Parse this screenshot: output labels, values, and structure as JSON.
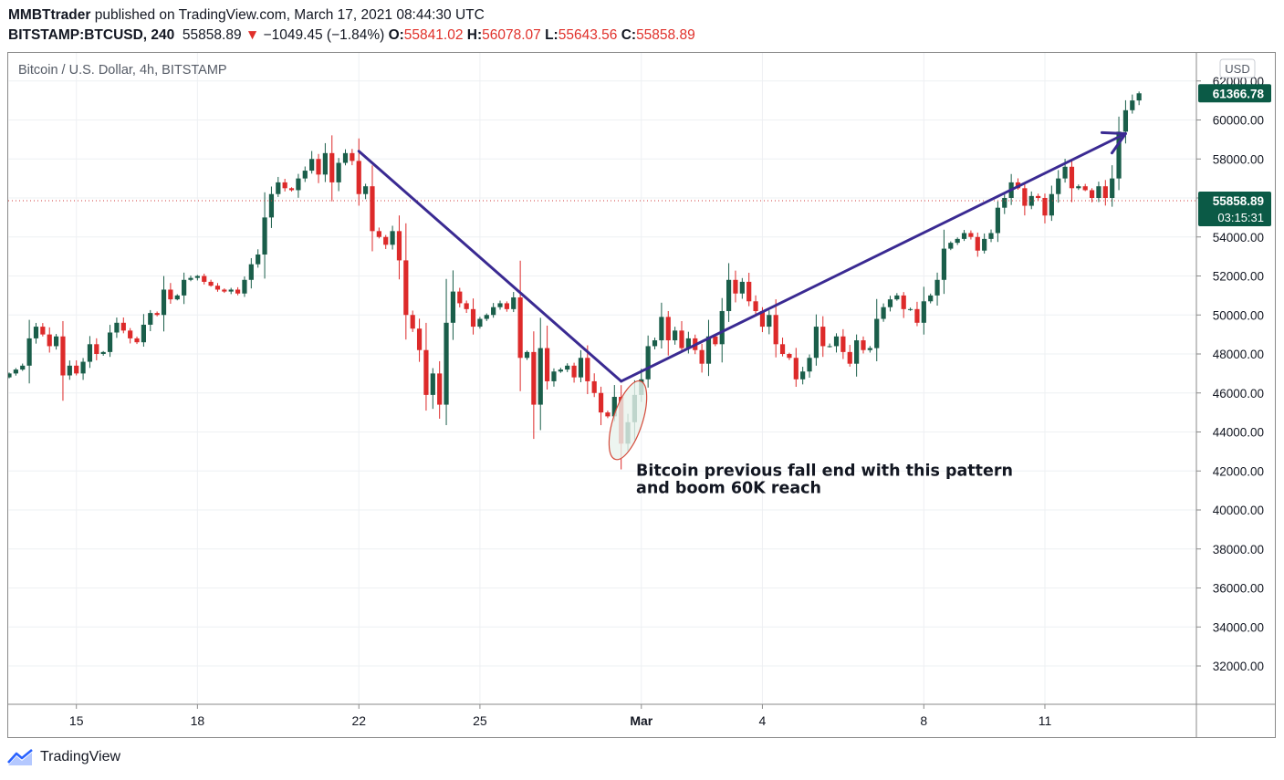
{
  "header": {
    "author": "MMBTtrader",
    "published_text": "published on TradingView.com, March 17, 2021 08:44:30 UTC",
    "symbol": "BITSTAMP:BTCUSD, 240",
    "last_price": "55858.89",
    "change": "−1049.45 (−1.84%)",
    "o_label": "O:",
    "o_value": "55841.02",
    "h_label": "H:",
    "h_value": "56078.07",
    "l_label": "L:",
    "l_value": "55643.56",
    "c_label": "C:",
    "c_value": "55858.89"
  },
  "footer": {
    "brand": "TradingView"
  },
  "colors": {
    "up": "#1a5e4a",
    "down": "#dd2a2a",
    "arrow": "#3a2a92",
    "axis_label_bg": "#0b5a46"
  },
  "chart_data": {
    "type": "candlestick",
    "title": "Bitcoin / U.S. Dollar, 4h, BITSTAMP",
    "currency": "USD",
    "ylim": [
      30000,
      63000
    ],
    "y_ticks": [
      "32000.00",
      "34000.00",
      "36000.00",
      "38000.00",
      "40000.00",
      "42000.00",
      "44000.00",
      "46000.00",
      "48000.00",
      "50000.00",
      "52000.00",
      "54000.00",
      "56000.00",
      "58000.00",
      "60000.00",
      "62000.00"
    ],
    "x_ticks": [
      {
        "label": "15",
        "bar": 10
      },
      {
        "label": "18",
        "bar": 28
      },
      {
        "label": "22",
        "bar": 52
      },
      {
        "label": "25",
        "bar": 70
      },
      {
        "label": "Mar",
        "bar": 94,
        "bold": true
      },
      {
        "label": "4",
        "bar": 112
      },
      {
        "label": "8",
        "bar": 136
      },
      {
        "label": "11",
        "bar": 154
      }
    ],
    "last_price_label": "61366.78",
    "current_price_label": "55858.89",
    "countdown_label": "03:15:31",
    "current_price_value": 55858.89,
    "annotation": {
      "text_line1": "Bitcoin previous fall end with this pattern",
      "text_line2": "and boom 60K reach",
      "anchor_bar": 92,
      "anchor_price": 44600
    },
    "arrows": [
      {
        "from": {
          "bar": 52,
          "price": 58400
        },
        "to": {
          "bar": 91,
          "price": 46600
        }
      },
      {
        "from": {
          "bar": 91,
          "price": 46600
        },
        "to": {
          "bar": 166,
          "price": 59300
        }
      }
    ],
    "closes": [
      47000,
      47200,
      47400,
      48800,
      49400,
      49000,
      48400,
      48900,
      46900,
      47400,
      47000,
      47600,
      48500,
      48000,
      48100,
      49100,
      49600,
      49200,
      48800,
      48600,
      49500,
      50100,
      50000,
      51300,
      50800,
      51000,
      51800,
      51900,
      52000,
      51700,
      51500,
      51300,
      51200,
      51300,
      51100,
      51800,
      52600,
      53100,
      55000,
      56200,
      56800,
      56500,
      56400,
      57000,
      57400,
      58000,
      57200,
      58300,
      56800,
      57800,
      58300,
      57900,
      56200,
      56600,
      54300,
      54000,
      53600,
      54300,
      52800,
      50000,
      49300,
      48200,
      45900,
      47000,
      45400,
      49600,
      51200,
      50600,
      50300,
      49400,
      49800,
      50000,
      50400,
      50600,
      50300,
      50900,
      47800,
      48100,
      45400,
      48300,
      46600,
      47100,
      47200,
      47400,
      46800,
      47800,
      46600,
      46000,
      45000,
      44800,
      45800,
      43400,
      44500,
      45900,
      46700,
      48400,
      48700,
      49900,
      48700,
      49200,
      48300,
      48800,
      48200,
      47500,
      48900,
      48500,
      50200,
      51800,
      51100,
      51700,
      50700,
      50200,
      49400,
      50000,
      48500,
      48000,
      47800,
      46700,
      47100,
      47800,
      49400,
      48400,
      48400,
      48900,
      48100,
      47500,
      48700,
      48200,
      48300,
      49800,
      50400,
      50800,
      51000,
      50300,
      50300,
      49600,
      50700,
      51000,
      51800,
      53400,
      53700,
      53900,
      54200,
      54000,
      53300,
      53900,
      54200,
      55500,
      56000,
      56800,
      56500,
      55600,
      56100,
      56000,
      55100,
      56200,
      57000,
      57600,
      56500,
      56600,
      56400,
      56000,
      56600,
      56000,
      57000,
      59400,
      60500,
      61000,
      61366.78
    ]
  }
}
